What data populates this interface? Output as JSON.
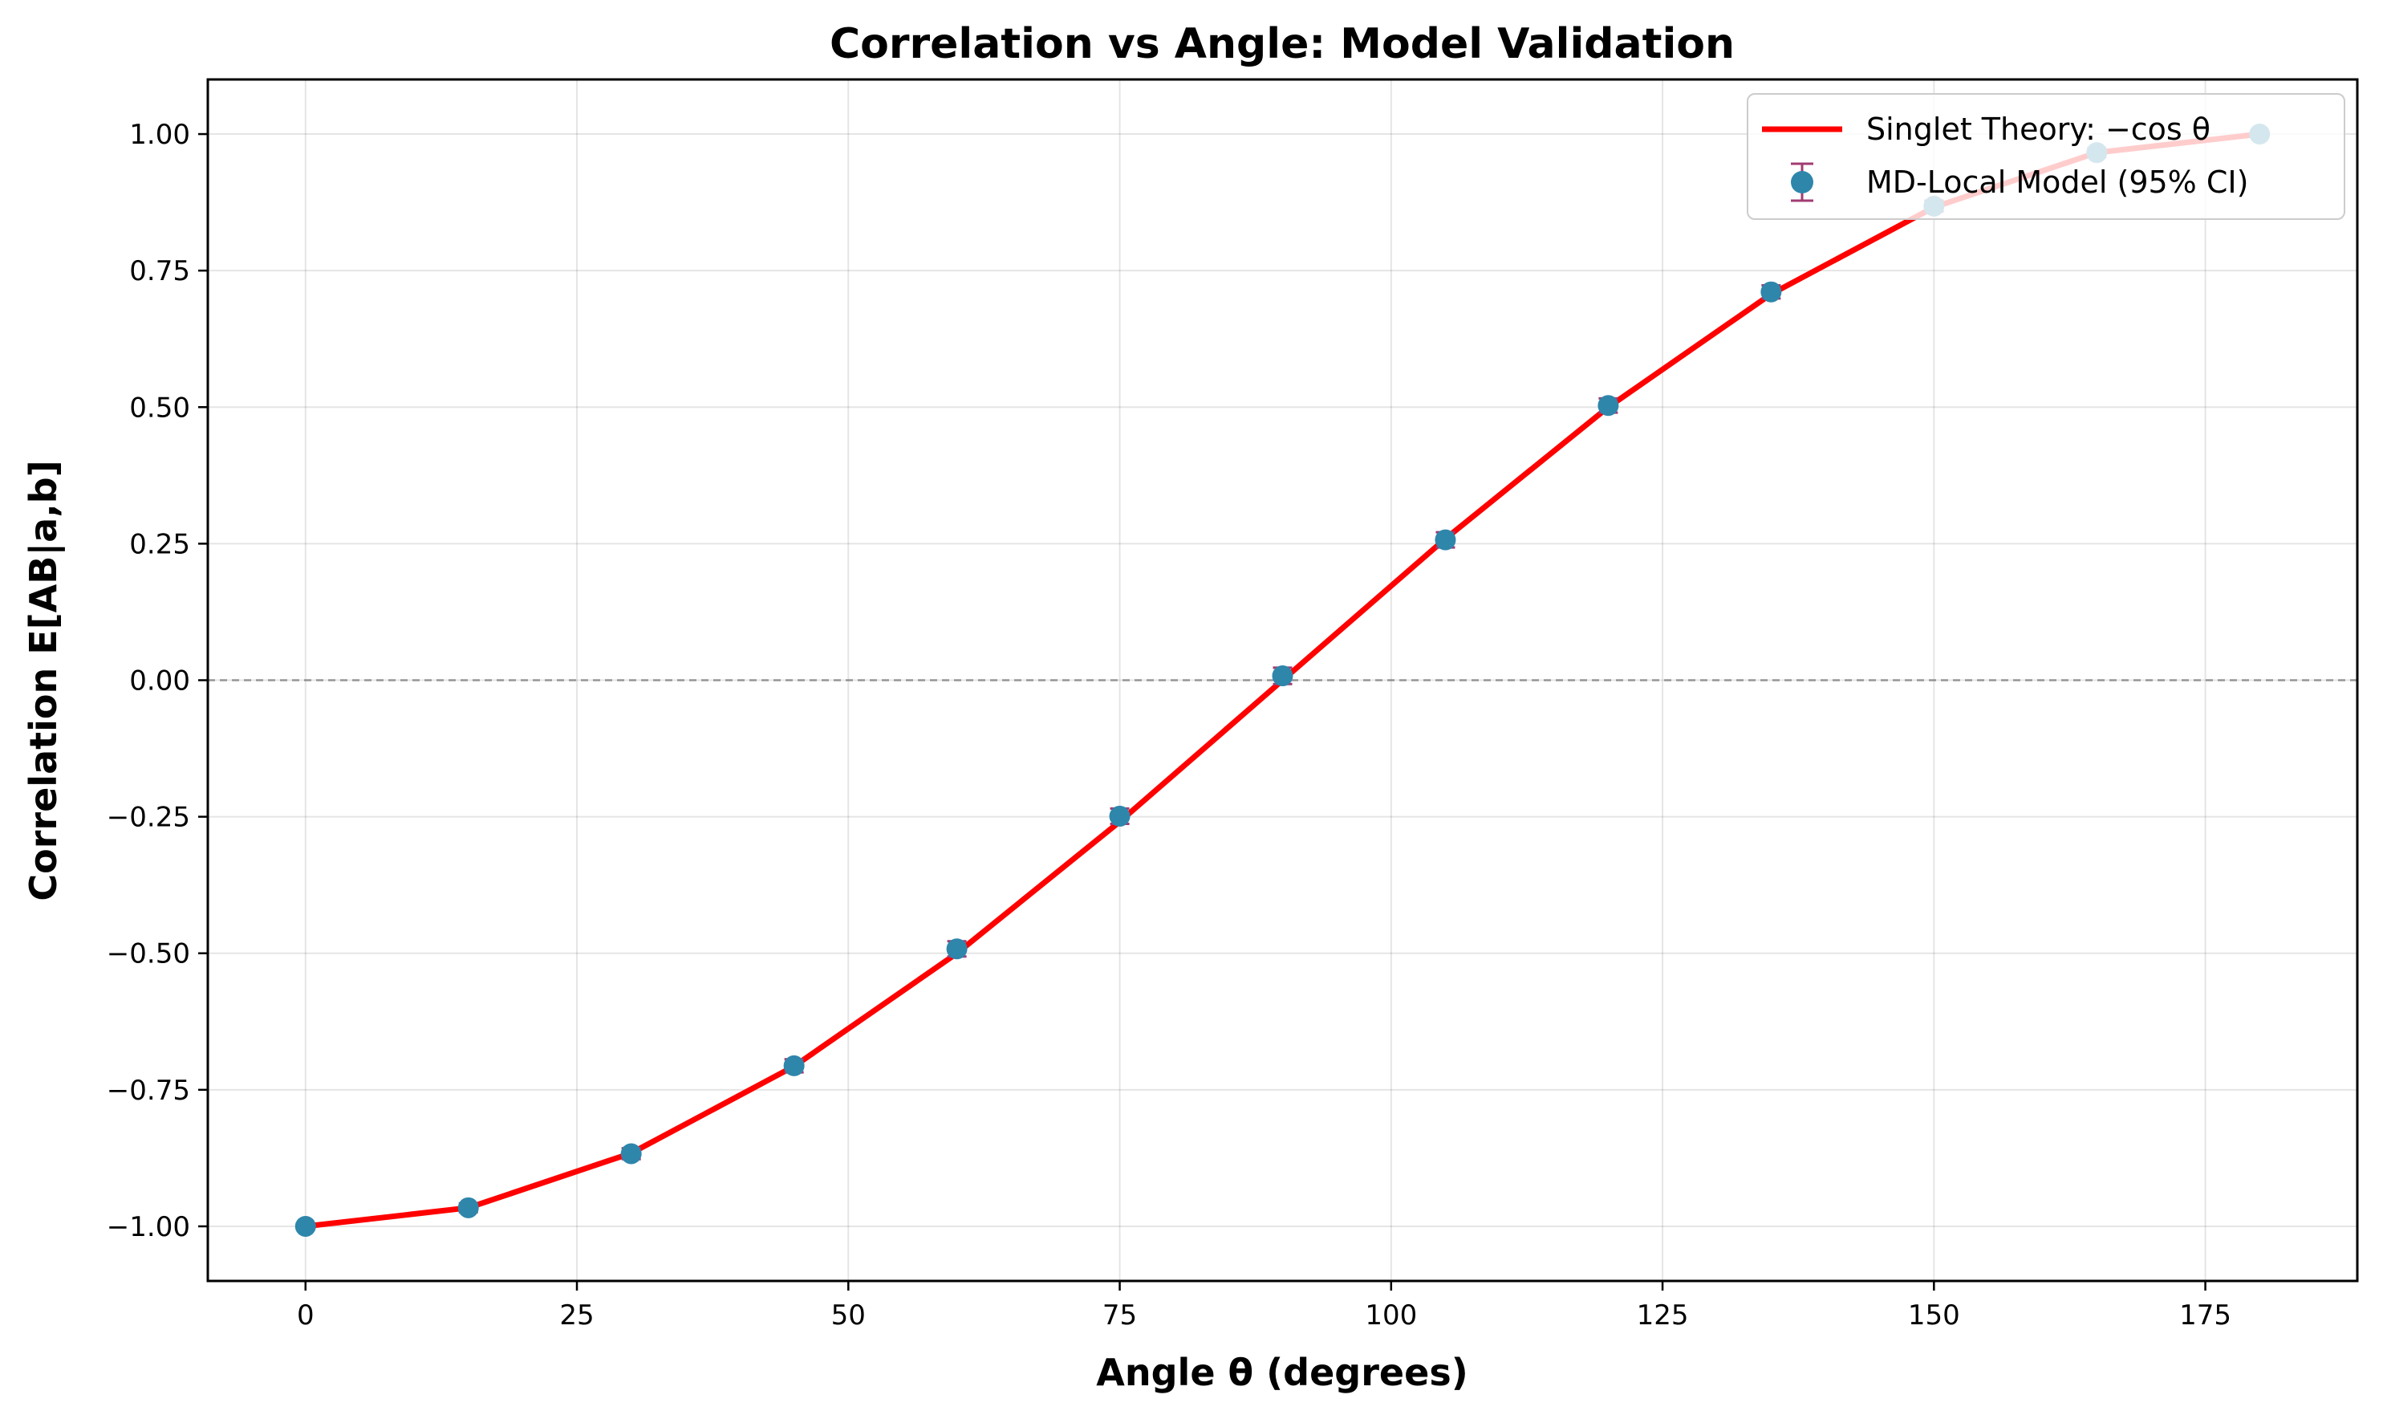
{
  "chart_data": {
    "type": "line",
    "title": "Correlation vs Angle: Model Validation",
    "xlabel": "Angle θ (degrees)",
    "ylabel": "Correlation E[AB|a,b]",
    "xlim": [
      -9,
      189
    ],
    "ylim": [
      -1.1,
      1.1
    ],
    "x_ticks": [
      0,
      25,
      50,
      75,
      100,
      125,
      150,
      175
    ],
    "x_tick_labels": [
      "0",
      "25",
      "50",
      "75",
      "100",
      "125",
      "150",
      "175"
    ],
    "y_ticks": [
      1.0,
      0.75,
      0.5,
      0.25,
      0.0,
      -0.25,
      -0.5,
      -0.75,
      -1.0
    ],
    "y_tick_labels": [
      "1.00",
      "0.75",
      "0.50",
      "0.25",
      "0.00",
      "−0.25",
      "−0.50",
      "−0.75",
      "−1.00"
    ],
    "grid": true,
    "zero_line": "dashed",
    "legend_position": "top-right",
    "x": [
      0,
      15,
      30,
      45,
      60,
      75,
      90,
      105,
      120,
      135,
      150,
      165,
      180
    ],
    "series": [
      {
        "name": "Singlet Theory: −cos θ",
        "kind": "line",
        "color": "#ff0000",
        "values": [
          -1.0,
          -0.966,
          -0.866,
          -0.707,
          -0.5,
          -0.259,
          0.0,
          0.259,
          0.5,
          0.707,
          0.866,
          0.966,
          1.0
        ]
      },
      {
        "name": "MD-Local Model (95% CI)",
        "kind": "errorbar",
        "color": "#2e86ab",
        "errorbar_color": "#a23b72",
        "values": [
          -1.0,
          -0.966,
          -0.867,
          -0.706,
          -0.492,
          -0.249,
          0.008,
          0.257,
          0.503,
          0.711,
          0.868,
          0.966,
          1.0
        ],
        "ci": [
          0.005,
          0.008,
          0.01,
          0.012,
          0.014,
          0.014,
          0.015,
          0.014,
          0.013,
          0.012,
          0.01,
          0.008,
          0.005
        ]
      }
    ]
  }
}
